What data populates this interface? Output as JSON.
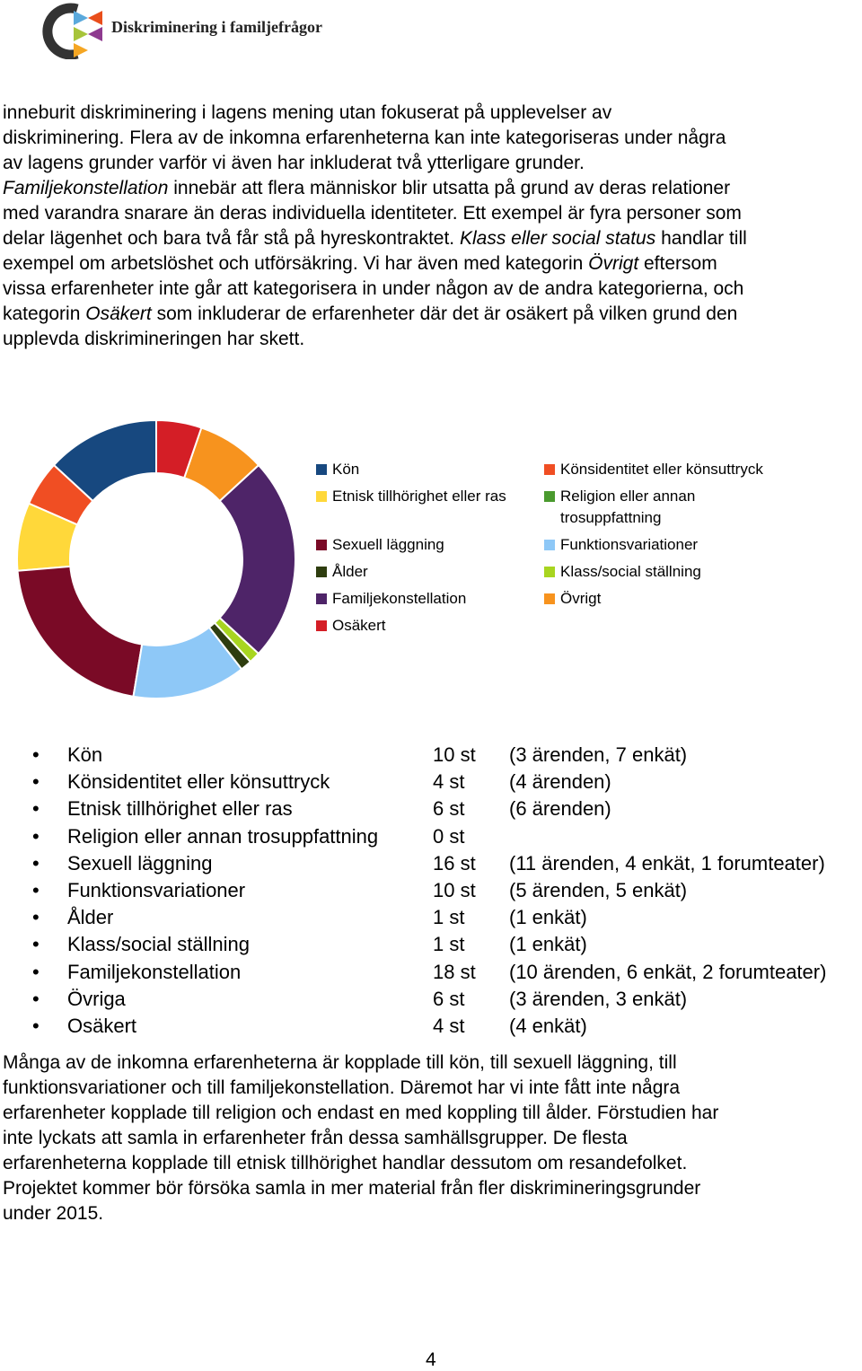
{
  "header": {
    "logo_text": "Diskriminering i familjefrågor"
  },
  "paragraph1": [
    [
      "inneburit diskriminering i lagens mening utan fokuserat på upplevelser av"
    ],
    [
      "diskriminering. Flera av de inkomna erfarenheterna kan inte kategoriseras under några"
    ],
    [
      "av lagens grunder varför vi även har inkluderat två ytterligare grunder."
    ],
    [
      {
        "italic": "Familjekonstellation"
      },
      " innebär att flera människor blir utsatta på grund av deras relationer"
    ],
    [
      "med varandra snarare än deras individuella identiteter. Ett exempel är fyra personer som"
    ],
    [
      "delar lägenhet och bara två får stå på hyreskontraktet. ",
      {
        "italic": "Klass eller social status"
      },
      " handlar till"
    ],
    [
      "exempel om arbetslöshet och utförsäkring. Vi har även med kategorin ",
      {
        "italic": "Övrigt"
      },
      " eftersom"
    ],
    [
      "vissa erfarenheter inte går att kategorisera in under någon av de andra kategorierna, och"
    ],
    [
      "kategorin ",
      {
        "italic": "Osäkert"
      },
      " som inkluderar de erfarenheter där det är osäkert på vilken grund den"
    ],
    [
      "upplevda diskrimineringen har skett."
    ]
  ],
  "chart_data": {
    "type": "donut",
    "series": [
      {
        "name": "Kön",
        "color": "#17487f",
        "value": 10
      },
      {
        "name": "Könsidentitet eller könsuttryck",
        "color": "#f04e23",
        "value": 4
      },
      {
        "name": "Etnisk tillhörighet eller ras",
        "color": "#ffd83a",
        "value": 6
      },
      {
        "name": "Religion eller annan trosuppfattning",
        "color": "#4a9a2e",
        "value": 0
      },
      {
        "name": "Sexuell läggning",
        "color": "#7a0a26",
        "value": 16
      },
      {
        "name": "Funktionsvariationer",
        "color": "#8ec8f7",
        "value": 10
      },
      {
        "name": "Ålder",
        "color": "#2e3d0f",
        "value": 1
      },
      {
        "name": "Klass/social ställning",
        "color": "#a8d520",
        "value": 1
      },
      {
        "name": "Familjekonstellation",
        "color": "#4e2468",
        "value": 18
      },
      {
        "name": "Övrigt",
        "color": "#f7931e",
        "value": 6
      },
      {
        "name": "Osäkert",
        "color": "#d41e26",
        "value": 4
      }
    ]
  },
  "list": [
    {
      "name": "Kön",
      "count": "10 st",
      "detail": "(3 ärenden, 7 enkät)"
    },
    {
      "name": "Könsidentitet eller könsuttryck",
      "count": "4 st",
      "detail": "(4 ärenden)"
    },
    {
      "name": "Etnisk tillhörighet eller ras",
      "count": "6 st",
      "detail": "(6 ärenden)"
    },
    {
      "name": "Religion eller annan trosuppfattning",
      "count": "0 st"
    },
    {
      "name": "Sexuell läggning",
      "count": "16 st",
      "detail": "(11 ärenden, 4 enkät, 1 forumteater)"
    },
    {
      "name": "Funktionsvariationer",
      "count": "10 st",
      "detail": "(5 ärenden, 5 enkät)"
    },
    {
      "name": "Ålder",
      "count": "1 st",
      "detail": "(1 enkät)"
    },
    {
      "name": "Klass/social ställning",
      "count": "1 st",
      "detail": "(1 enkät)"
    },
    {
      "name": "Familjekonstellation",
      "count": "18 st",
      "detail": "(10 ärenden, 6 enkät, 2 forumteater)"
    },
    {
      "name": "Övriga",
      "count": "6 st",
      "detail": "(3 ärenden, 3 enkät)"
    },
    {
      "name": "Osäkert",
      "count": "4 st",
      "detail": "(4 enkät)"
    }
  ],
  "paragraph2": [
    [
      "Många av de inkomna erfarenheterna är kopplade till kön, till sexuell läggning, till"
    ],
    [
      "funktionsvariationer och till familjekonstellation. Däremot har vi inte fått inte några"
    ],
    [
      "erfarenheter kopplade till religion och endast en med koppling till ålder. Förstudien har"
    ],
    [
      "inte lyckats att samla in erfarenheter från dessa samhällsgrupper. De flesta"
    ],
    [
      "erfarenheterna kopplade till etnisk tillhörighet handlar dessutom om resandefolket."
    ],
    [
      "Projektet kommer bör försöka samla in mer material från fler diskrimineringsgrunder"
    ],
    [
      "under 2015."
    ]
  ],
  "footer": {
    "page_number": "4"
  }
}
